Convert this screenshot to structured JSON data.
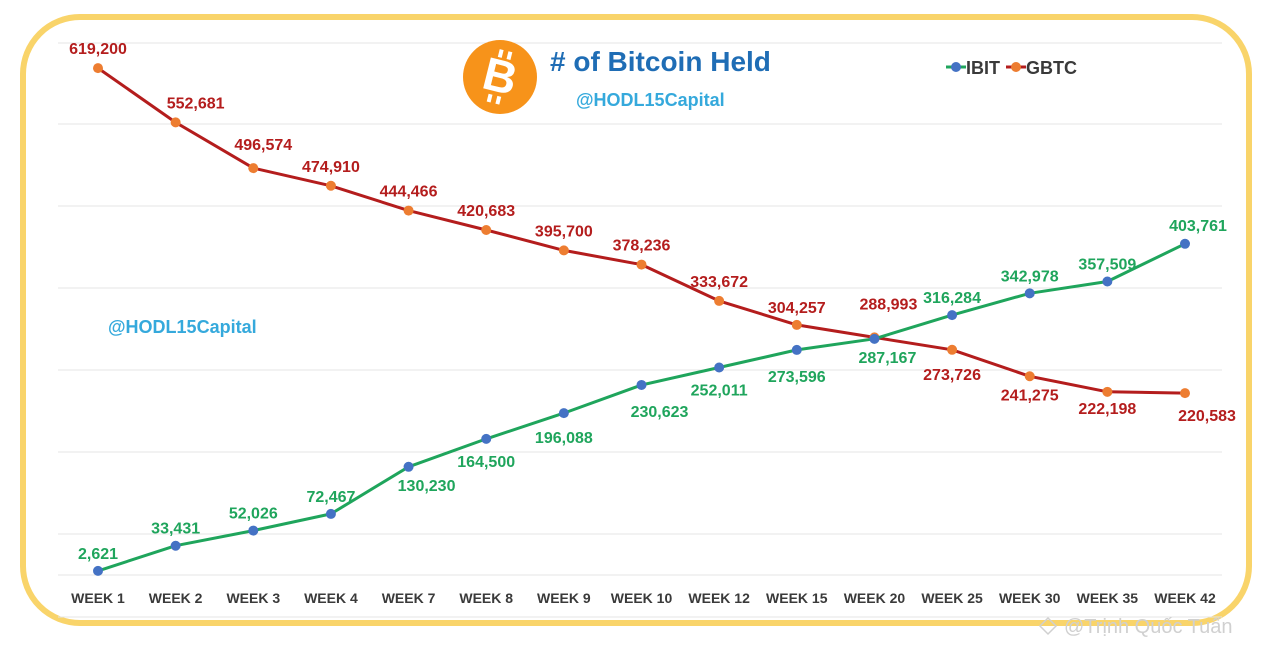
{
  "chart_data": {
    "type": "line",
    "title": "# of Bitcoin Held",
    "handle_main": "@HODL15Capital",
    "handle_left": "@HODL15Capital",
    "watermark": "@Trịnh Quốc Tuấn",
    "legend_position": "top-right",
    "grid": true,
    "ylim": [
      0,
      650000
    ],
    "categories": [
      "WEEK 1",
      "WEEK 2",
      "WEEK 3",
      "WEEK 4",
      "WEEK 7",
      "WEEK 8",
      "WEEK 9",
      "WEEK 10",
      "WEEK 12",
      "WEEK 15",
      "WEEK 20",
      "WEEK 25",
      "WEEK 30",
      "WEEK 35",
      "WEEK 42"
    ],
    "series": [
      {
        "name": "IBIT",
        "line_color": "#1fa55c",
        "marker_color": "#4472c4",
        "label_color": "#1fa55c",
        "values": [
          2621,
          33431,
          52026,
          72467,
          130230,
          164500,
          196088,
          230623,
          252011,
          273596,
          287167,
          316284,
          342978,
          357509,
          403761
        ],
        "labels": [
          "2,621",
          "33,431",
          "52,026",
          "72,467",
          "130,230",
          "164,500",
          "196,088",
          "230,623",
          "252,011",
          "273,596",
          "287,167",
          "316,284",
          "342,978",
          "357,509",
          "403,761"
        ]
      },
      {
        "name": "GBTC",
        "line_color": "#b41d1d",
        "marker_color": "#ed7d31",
        "label_color": "#b41d1d",
        "values": [
          619200,
          552681,
          496574,
          474910,
          444466,
          420683,
          395700,
          378236,
          333672,
          304257,
          288993,
          273726,
          241275,
          222198,
          220583
        ],
        "labels": [
          "619,200",
          "552,681",
          "496,574",
          "474,910",
          "444,466",
          "420,683",
          "395,700",
          "378,236",
          "333,672",
          "304,257",
          "288,993",
          "273,726",
          "241,275",
          "222,198",
          "220,583"
        ]
      }
    ]
  },
  "colors": {
    "frame": "#f9d46a",
    "bitcoin_orange": "#f7931a",
    "title_blue": "#1f6db5",
    "handle_blue": "#35a9dc"
  },
  "icons": {
    "logo": "bitcoin-logo-icon",
    "watermark_icon": "diamond-mark-icon"
  }
}
